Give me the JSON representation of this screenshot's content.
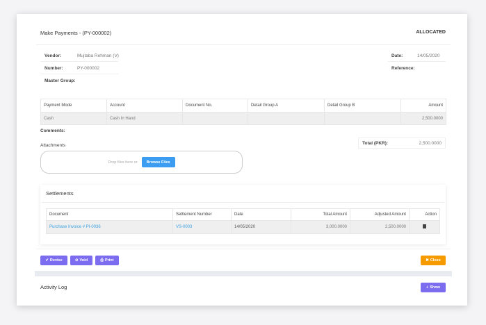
{
  "header": {
    "title": "Make Payments - (PY-000002)",
    "status": "ALLOCATED"
  },
  "info": {
    "vendor_label": "Vendor:",
    "vendor": "Mujtaba Rehman (V)",
    "number_label": "Number:",
    "number": "PY-000002",
    "master_group_label": "Master Group:",
    "date_label": "Date:",
    "date": "14/05/2020",
    "reference_label": "Reference:"
  },
  "payments": {
    "columns": [
      "Payment Mode",
      "Account",
      "Document No.",
      "Detail Group A",
      "Detail Group B",
      "Amount"
    ],
    "rows": [
      [
        "Cash",
        "Cash In Hand",
        "",
        "",
        "",
        "2,500.0000"
      ]
    ]
  },
  "comments_label": "Comments:",
  "attachments": {
    "label": "Attachments",
    "drop_text": "Drop files here or",
    "browse_label": "Browse Files"
  },
  "total": {
    "label": "Total (PKR):",
    "value": "2,500.0000"
  },
  "settlements": {
    "title": "Settlements",
    "columns": [
      "Document",
      "Settlement Number",
      "Date",
      "Total Amount",
      "Adjusted Amount",
      "Action"
    ],
    "rows": [
      [
        "Purchase Invoice # PI-0036",
        "VS-0003",
        "14/05/2020",
        "3,000.0000",
        "2,500.0000",
        "trash-icon"
      ]
    ]
  },
  "actions": {
    "revise": "Revise",
    "void": "Void",
    "print": "Print",
    "close": "Close"
  },
  "activity": {
    "title": "Activity Log",
    "show": "Show"
  },
  "colors": {
    "primary": "#7b6cf0",
    "warning": "#f59b00",
    "link": "#3aa0e0",
    "browse": "#3b9cf2"
  }
}
